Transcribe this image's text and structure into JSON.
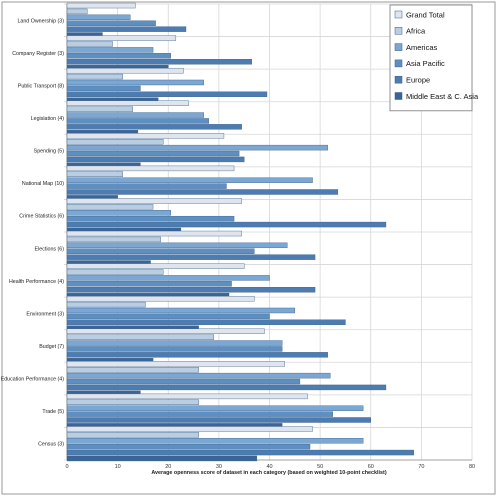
{
  "chart_data": {
    "type": "bar",
    "orientation": "horizontal",
    "xlabel": "Average openness score of dataset in each category (based on weighted 10-point checklist)",
    "xlim": [
      0,
      80
    ],
    "xticks": [
      "0",
      "10",
      "20",
      "30",
      "40",
      "50",
      "60",
      "70",
      "80"
    ],
    "grid": true,
    "legend_position": "top-right",
    "categories": [
      "Land Ownership (3)",
      "Company Register (3)",
      "Public Transport (8)",
      "Legislation (4)",
      "Spending (5)",
      "National Map (10)",
      "Crime Statistics (6)",
      "Elections (6)",
      "Health Performance (4)",
      "Environment (3)",
      "Budget (7)",
      "Education Performance (4)",
      "Trade (5)",
      "Census (3)"
    ],
    "series": [
      {
        "name": "Grand Total",
        "color": "#dfe5ee",
        "values": [
          13.5,
          21.5,
          23.0,
          24.0,
          31.0,
          33.0,
          34.5,
          34.5,
          35.0,
          37.0,
          39.0,
          43.0,
          47.5,
          48.5
        ]
      },
      {
        "name": "Africa",
        "color": "#b9cde3",
        "values": [
          4.0,
          9.0,
          11.0,
          13.0,
          19.0,
          11.0,
          17.0,
          18.5,
          19.0,
          15.5,
          29.0,
          26.0,
          26.0,
          26.0
        ]
      },
      {
        "name": "Americas",
        "color": "#7ba7d4",
        "values": [
          12.5,
          17.0,
          27.0,
          27.0,
          51.5,
          48.5,
          20.5,
          43.5,
          40.0,
          45.0,
          42.5,
          52.0,
          58.5,
          58.5
        ]
      },
      {
        "name": "Asia Pacific",
        "color": "#5e8fc2",
        "values": [
          17.5,
          20.5,
          14.5,
          28.0,
          34.0,
          31.5,
          33.0,
          37.0,
          32.5,
          40.0,
          42.5,
          46.0,
          52.5,
          48.0
        ]
      },
      {
        "name": "Europe",
        "color": "#4c7cb1",
        "values": [
          23.5,
          36.5,
          39.5,
          34.5,
          35.0,
          53.5,
          63.0,
          49.0,
          49.0,
          55.0,
          51.5,
          63.0,
          60.0,
          68.5
        ]
      },
      {
        "name": "Middle East & C. Asia",
        "color": "#3b6597",
        "values": [
          7.0,
          20.0,
          18.0,
          14.0,
          14.5,
          10.0,
          22.5,
          16.5,
          32.0,
          26.0,
          17.0,
          14.5,
          42.5,
          37.5
        ]
      }
    ]
  }
}
